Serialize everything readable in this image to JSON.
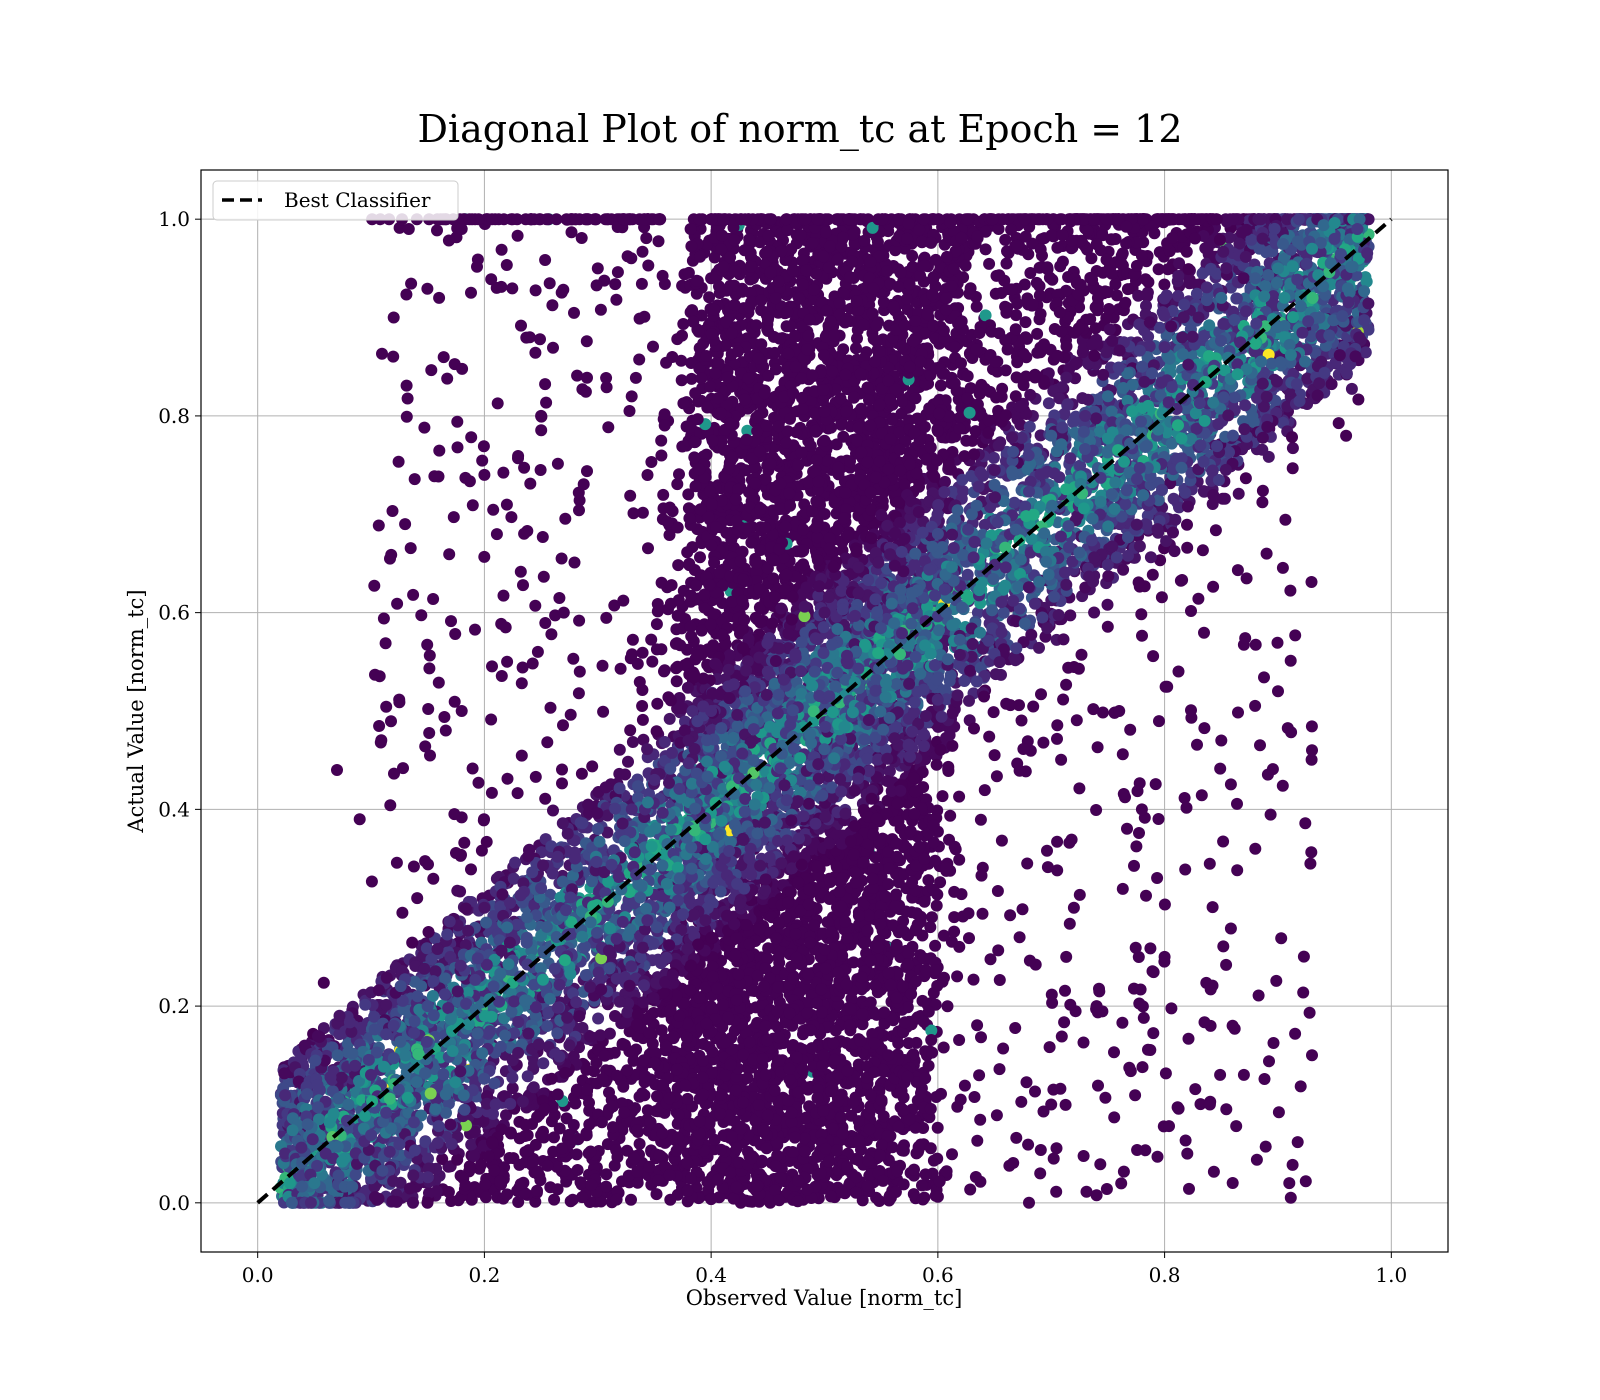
{
  "chart_data": {
    "type": "scatter",
    "title": "Diagonal Plot of norm_tc at Epoch = 12",
    "xlabel": "Observed Value [norm_tc]",
    "ylabel": "Actual Value [norm_tc]",
    "xlim": [
      -0.05,
      1.05
    ],
    "ylim": [
      -0.05,
      1.05
    ],
    "xticks": [
      "0.0",
      "0.2",
      "0.4",
      "0.6",
      "0.8",
      "1.0"
    ],
    "yticks": [
      "0.0",
      "0.2",
      "0.4",
      "0.6",
      "0.8",
      "1.0"
    ],
    "grid": true,
    "legend": {
      "position": "upper-left",
      "entries": [
        {
          "label": "Best Classifier",
          "style": "black dashed line"
        }
      ]
    },
    "reference_line": {
      "name": "Best Classifier",
      "x": [
        0.0,
        1.0
      ],
      "y": [
        0.0,
        1.0
      ],
      "color": "#000000",
      "style": "dashed"
    },
    "colormap": "viridis",
    "colors": {
      "dark": "#440154",
      "mid": "#3b528b",
      "teal": "#21918c",
      "green": "#5ec962",
      "yellow": "#fde725"
    },
    "series": [
      {
        "description": "dense band along the diagonal, colored by value",
        "points": [
          [
            0.05,
            0.02
          ],
          [
            0.06,
            0.05
          ],
          [
            0.08,
            0.1
          ],
          [
            0.1,
            0.13
          ],
          [
            0.12,
            0.18
          ],
          [
            0.15,
            0.2
          ],
          [
            0.17,
            0.25
          ],
          [
            0.2,
            0.3
          ],
          [
            0.22,
            0.28
          ],
          [
            0.25,
            0.32
          ],
          [
            0.28,
            0.35
          ],
          [
            0.3,
            0.38
          ],
          [
            0.33,
            0.4
          ],
          [
            0.35,
            0.43
          ],
          [
            0.38,
            0.47
          ],
          [
            0.4,
            0.5
          ],
          [
            0.43,
            0.52
          ],
          [
            0.45,
            0.54
          ],
          [
            0.48,
            0.57
          ],
          [
            0.5,
            0.6
          ],
          [
            0.53,
            0.62
          ],
          [
            0.55,
            0.63
          ],
          [
            0.58,
            0.66
          ],
          [
            0.6,
            0.68
          ],
          [
            0.63,
            0.7
          ],
          [
            0.65,
            0.73
          ],
          [
            0.68,
            0.76
          ],
          [
            0.7,
            0.78
          ],
          [
            0.73,
            0.8
          ],
          [
            0.75,
            0.82
          ],
          [
            0.78,
            0.85
          ],
          [
            0.8,
            0.87
          ],
          [
            0.83,
            0.9
          ],
          [
            0.85,
            0.92
          ],
          [
            0.88,
            0.94
          ],
          [
            0.9,
            0.95
          ],
          [
            0.93,
            0.97
          ],
          [
            0.95,
            0.98
          ],
          [
            0.97,
            0.99
          ],
          [
            0.21,
            0.1
          ]
        ]
      },
      {
        "description": "sparse outliers",
        "points": [
          [
            0.12,
            0.9
          ],
          [
            0.13,
            0.69
          ],
          [
            0.16,
            0.92
          ],
          [
            0.18,
            0.99
          ],
          [
            0.07,
            0.44
          ],
          [
            0.09,
            0.39
          ],
          [
            0.3,
            0.95
          ],
          [
            0.25,
            0.8
          ],
          [
            0.2,
            0.74
          ],
          [
            0.27,
            0.6
          ],
          [
            0.93,
            0.46
          ],
          [
            0.93,
            0.15
          ],
          [
            0.91,
            0.02
          ],
          [
            0.88,
            0.36
          ],
          [
            0.85,
            0.47
          ],
          [
            0.86,
            0.18
          ],
          [
            0.84,
            0.1
          ],
          [
            0.8,
            0.25
          ],
          [
            0.76,
            0.5
          ],
          [
            0.72,
            0.3
          ],
          [
            0.9,
            0.52
          ],
          [
            0.89,
            0.66
          ],
          [
            0.87,
            0.13
          ],
          [
            0.82,
            0.05
          ],
          [
            0.78,
            0.4
          ],
          [
            0.74,
            0.2
          ],
          [
            0.7,
            0.1
          ],
          [
            0.24,
            0.88
          ],
          [
            0.22,
            0.55
          ],
          [
            0.18,
            0.5
          ]
        ]
      }
    ]
  }
}
